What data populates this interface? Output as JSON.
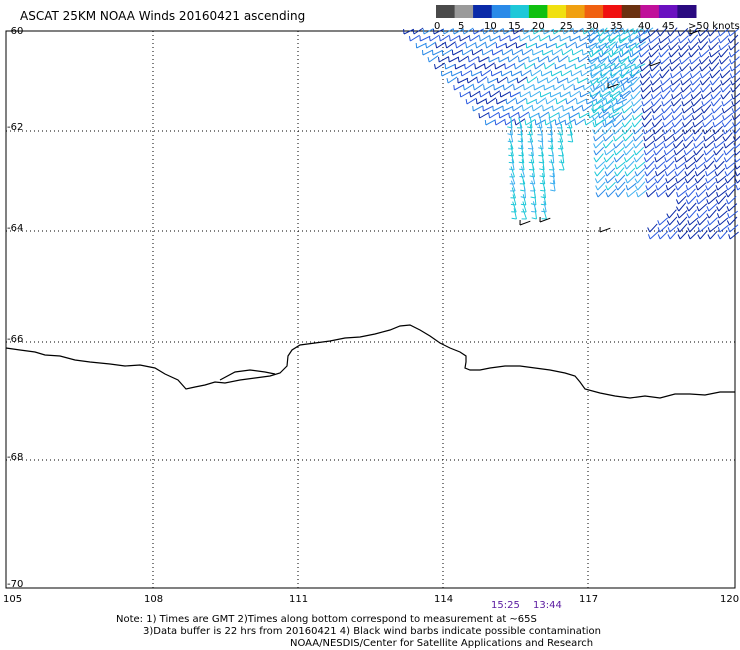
{
  "title": "ASCAT 25KM NOAA Winds 20160421 ascending",
  "legend": {
    "swatches": [
      {
        "color": "#4a4a4a"
      },
      {
        "color": "#9a9a9a"
      },
      {
        "color": "#0a2aa8"
      },
      {
        "color": "#2a8ae8"
      },
      {
        "color": "#1ec8d8"
      },
      {
        "color": "#10c010"
      },
      {
        "color": "#f0e010"
      },
      {
        "color": "#f0a010"
      },
      {
        "color": "#f06010"
      },
      {
        "color": "#f01010"
      },
      {
        "color": "#6a3010"
      },
      {
        "color": "#c0109a"
      },
      {
        "color": "#6a10c0"
      },
      {
        "color": "#2a0a80"
      }
    ],
    "labels": [
      "0",
      "5",
      "10",
      "15",
      "20",
      "25",
      "30",
      "35",
      "40",
      "45",
      ">50 knots"
    ]
  },
  "axes": {
    "lon_labels": [
      "105",
      "108",
      "111",
      "114",
      "117",
      "120"
    ],
    "lat_labels": [
      "-60",
      "-62",
      "-64",
      "-66",
      "-68",
      "-70"
    ]
  },
  "pass_times": [
    "15:25",
    "13:44"
  ],
  "notes": [
    "Note: 1) Times are GMT 2)Times along bottom correspond to measurement at ~65S",
    "3)Data buffer is 22 hrs from 20160421 4) Black wind barbs indicate possible contamination",
    "NOAA/NESDIS/Center for Satellite Applications and Research"
  ]
}
